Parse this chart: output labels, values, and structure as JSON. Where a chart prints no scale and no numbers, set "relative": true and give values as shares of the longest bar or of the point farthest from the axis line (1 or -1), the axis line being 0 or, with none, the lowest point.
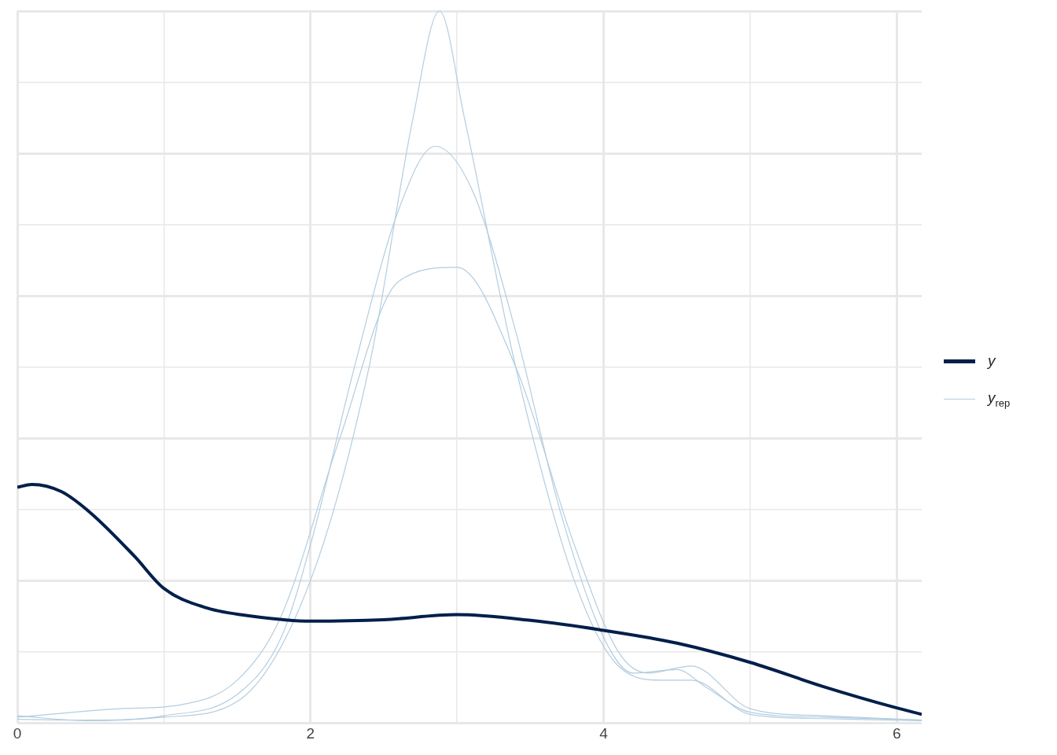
{
  "chart_data": {
    "type": "line",
    "relative": true,
    "marker": "none",
    "line_style": "solid",
    "grid": true,
    "legend": "right",
    "tick_labels": "x",
    "xlim": [
      0,
      6.17
    ],
    "xticks": [
      0,
      {
        "value": 1,
        "label": null
      },
      2,
      {
        "value": 3,
        "label": null
      },
      4,
      {
        "value": 5,
        "label": null
      },
      6
    ],
    "series": [
      {
        "name": "y",
        "color": "#011f4b",
        "x": [
          0,
          0.1,
          0.3,
          0.5,
          0.8,
          1.0,
          1.3,
          1.6,
          2.0,
          2.5,
          3.0,
          3.5,
          4.0,
          4.5,
          5.0,
          5.5,
          6.0,
          6.17
        ],
        "values": [
          0.331,
          0.335,
          0.325,
          0.295,
          0.234,
          0.189,
          0.161,
          0.15,
          0.143,
          0.145,
          0.152,
          0.144,
          0.13,
          0.112,
          0.085,
          0.051,
          0.021,
          0.012
        ]
      },
      {
        "name": "y$_{rep}$",
        "color": "#b3cde0",
        "x": [
          0,
          0.5,
          1.0,
          1.5,
          1.8,
          2.0,
          2.3,
          2.6,
          2.85,
          3.1,
          3.4,
          3.7,
          4.0,
          4.2,
          4.5,
          4.7,
          5.0,
          5.5,
          6.17
        ],
        "values": [
          0.005,
          0.004,
          0.01,
          0.04,
          0.12,
          0.25,
          0.5,
          0.72,
          0.81,
          0.75,
          0.55,
          0.3,
          0.12,
          0.07,
          0.075,
          0.05,
          0.015,
          0.008,
          0.004
        ]
      },
      {
        "color": "#b3cde0",
        "x": [
          0,
          0.5,
          1.0,
          1.5,
          2.0,
          2.4,
          2.7,
          2.88,
          3.05,
          3.4,
          3.8,
          4.1,
          4.4,
          4.6,
          5.0,
          5.5,
          6.17
        ],
        "values": [
          0.01,
          0.003,
          0.008,
          0.03,
          0.2,
          0.5,
          0.85,
          1.0,
          0.85,
          0.5,
          0.2,
          0.08,
          0.06,
          0.06,
          0.012,
          0.006,
          0.003
        ]
      },
      {
        "color": "#b3cde0",
        "x": [
          0,
          0.7,
          1.1,
          1.5,
          1.8,
          2.2,
          2.6,
          3.0,
          3.4,
          3.8,
          4.1,
          4.3,
          4.6,
          5.0,
          5.5,
          6.17
        ],
        "values": [
          0.008,
          0.02,
          0.025,
          0.06,
          0.15,
          0.4,
          0.62,
          0.64,
          0.5,
          0.25,
          0.1,
          0.07,
          0.08,
          0.02,
          0.01,
          0.004
        ]
      }
    ]
  }
}
